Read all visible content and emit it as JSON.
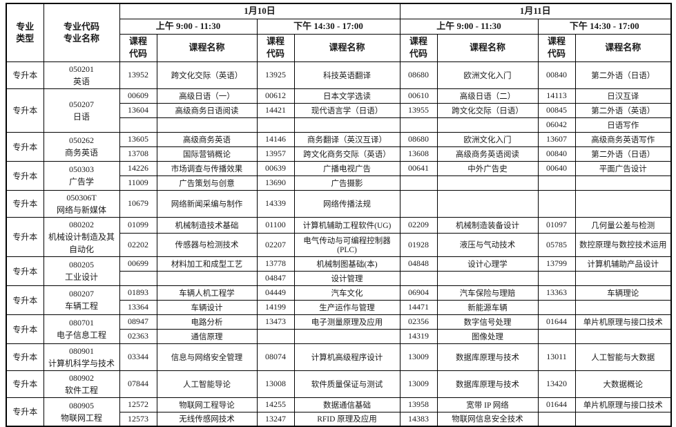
{
  "header": {
    "major_type": "专业\n类型",
    "major_code_name": "专业代码\n专业名称",
    "day1": {
      "date": "1月10日",
      "am": "上午 9:00 - 11:30",
      "pm": "下午 14:30 - 17:00"
    },
    "day2": {
      "date": "1月11日",
      "am": "上午 9:00 - 11:30",
      "pm": "下午 14:30 - 17:00"
    },
    "course_code": "课程\n代码",
    "course_name": "课程名称"
  },
  "colors": {
    "border": "#000000",
    "text": "#1a1a1a",
    "background": "#ffffff"
  },
  "majors": [
    {
      "type": "专升本",
      "code": "050201",
      "name": "英语",
      "slots": [
        [
          "13952",
          "跨文化交际（英语）",
          "13925",
          "科技英语翻译",
          "08680",
          "欧洲文化入门",
          "00840",
          "第二外语（日语）"
        ]
      ]
    },
    {
      "type": "专升本",
      "code": "050207",
      "name": "日语",
      "slots": [
        [
          "00609",
          "高级日语（一）",
          "00612",
          "日本文学选读",
          "00610",
          "高级日语（二）",
          "14113",
          "日汉互译"
        ],
        [
          "13604",
          "高级商务日语阅读",
          "14421",
          "现代语言学（日语）",
          "13955",
          "跨文化交际（日语）",
          "00845",
          "第二外语（英语）"
        ],
        [
          "",
          "",
          "",
          "",
          "",
          "",
          "06042",
          "日语写作"
        ]
      ]
    },
    {
      "type": "专升本",
      "code": "050262",
      "name": "商务英语",
      "slots": [
        [
          "13605",
          "高级商务英语",
          "14146",
          "商务翻译（英汉互译）",
          "08680",
          "欧洲文化入门",
          "13607",
          "高级商务英语写作"
        ],
        [
          "13708",
          "国际营销概论",
          "13957",
          "跨文化商务交际（英语）",
          "13608",
          "高级商务英语阅读",
          "00840",
          "第二外语（日语）"
        ]
      ]
    },
    {
      "type": "专升本",
      "code": "050303",
      "name": "广告学",
      "slots": [
        [
          "14226",
          "市场调查与传播效果",
          "00639",
          "广播电视广告",
          "00641",
          "中外广告史",
          "00640",
          "平面广告设计"
        ],
        [
          "11009",
          "广告策划与创意",
          "13690",
          "广告摄影",
          "",
          "",
          "",
          ""
        ]
      ]
    },
    {
      "type": "专升本",
      "code": "050306T",
      "name": "网络与新媒体",
      "slots": [
        [
          "10679",
          "网络新闻采编与制作",
          "14339",
          "网络传播法规",
          "",
          "",
          "",
          ""
        ]
      ]
    },
    {
      "type": "专升本",
      "code": "080202",
      "name": "机械设计制造及其自动化",
      "slots": [
        [
          "01099",
          "机械制造技术基础",
          "01100",
          "计算机辅助工程软件(UG)",
          "02209",
          "机械制造装备设计",
          "01097",
          "几何量公差与检测"
        ],
        [
          "02202",
          "传感器与检测技术",
          "02207",
          "电气传动与可编程控制器(PLC)",
          "01928",
          "液压与气动技术",
          "05785",
          "数控原理与数控技术运用"
        ]
      ]
    },
    {
      "type": "专升本",
      "code": "080205",
      "name": "工业设计",
      "slots": [
        [
          "00699",
          "材料加工和成型工艺",
          "13778",
          "机械制图基础(本)",
          "04848",
          "设计心理学",
          "13799",
          "计算机辅助产品设计"
        ],
        [
          "",
          "",
          "04847",
          "设计管理",
          "",
          "",
          "",
          ""
        ]
      ]
    },
    {
      "type": "专升本",
      "code": "080207",
      "name": "车辆工程",
      "slots": [
        [
          "01893",
          "车辆人机工程学",
          "04449",
          "汽车文化",
          "06904",
          "汽车保险与理赔",
          "13363",
          "车辆理论"
        ],
        [
          "13364",
          "车辆设计",
          "14199",
          "生产运作与管理",
          "14471",
          "新能源车辆",
          "",
          ""
        ]
      ]
    },
    {
      "type": "专升本",
      "code": "080701",
      "name": "电子信息工程",
      "slots": [
        [
          "08947",
          "电路分析",
          "13473",
          "电子测量原理及应用",
          "02356",
          "数字信号处理",
          "01644",
          "单片机原理与接口技术"
        ],
        [
          "02363",
          "通信原理",
          "",
          "",
          "14319",
          "图像处理",
          "",
          ""
        ]
      ]
    },
    {
      "type": "专升本",
      "code": "080901",
      "name": "计算机科学与技术",
      "slots": [
        [
          "03344",
          "信息与网络安全管理",
          "08074",
          "计算机高级程序设计",
          "13009",
          "数据库原理与技术",
          "13011",
          "人工智能与大数据"
        ]
      ]
    },
    {
      "type": "专升本",
      "code": "080902",
      "name": "软件工程",
      "slots": [
        [
          "07844",
          "人工智能导论",
          "13008",
          "软件质量保证与测试",
          "13009",
          "数据库原理与技术",
          "13420",
          "大数据概论"
        ]
      ]
    },
    {
      "type": "专升本",
      "code": "080905",
      "name": "物联网工程",
      "slots": [
        [
          "12572",
          "物联网工程导论",
          "14255",
          "数据通信基础",
          "13958",
          "宽带 IP 网络",
          "01644",
          "单片机原理与接口技术"
        ],
        [
          "12573",
          "无线传感网技术",
          "13247",
          "RFID 原理及应用",
          "14383",
          "物联网信息安全技术",
          "",
          ""
        ]
      ]
    }
  ]
}
